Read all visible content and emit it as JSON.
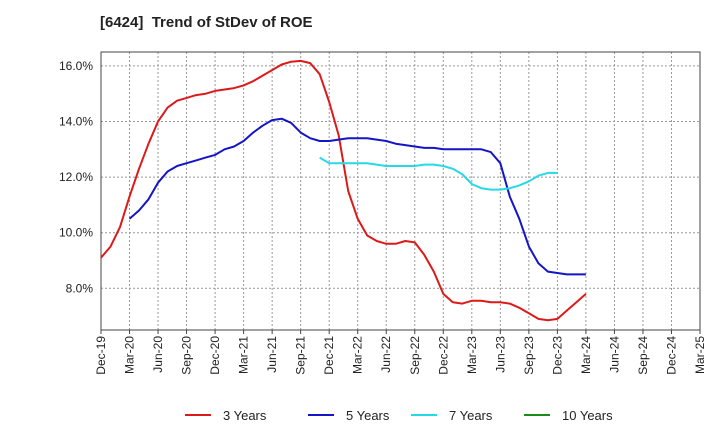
{
  "title": "[6424]  Trend of StDev of ROE",
  "chart_data": {
    "type": "line",
    "title": "[6424]  Trend of StDev of ROE",
    "xlabel": "",
    "ylabel": "",
    "x_ticks": [
      "Dec-19",
      "Mar-20",
      "Jun-20",
      "Sep-20",
      "Dec-20",
      "Mar-21",
      "Jun-21",
      "Sep-21",
      "Dec-21",
      "Mar-22",
      "Jun-22",
      "Sep-22",
      "Dec-22",
      "Mar-23",
      "Jun-23",
      "Sep-23",
      "Dec-23",
      "Mar-24",
      "Jun-24",
      "Sep-24",
      "Dec-24",
      "Mar-25"
    ],
    "y_ticks": [
      "8.0%",
      "10.0%",
      "12.0%",
      "14.0%",
      "16.0%"
    ],
    "y_tick_values": [
      8,
      10,
      12,
      14,
      16
    ],
    "ylim": [
      6.5,
      16.5
    ],
    "grid": true,
    "legend_position": "bottom",
    "series": [
      {
        "name": "3 Years",
        "color": "#dd1a1a",
        "start_index": 0,
        "values": [
          9.1,
          9.5,
          10.2,
          11.3,
          12.3,
          13.2,
          14.0,
          14.5,
          14.75,
          14.85,
          14.95,
          15.0,
          15.1,
          15.15,
          15.2,
          15.3,
          15.45,
          15.65,
          15.85,
          16.05,
          16.15,
          16.18,
          16.1,
          15.7,
          14.7,
          13.5,
          11.5,
          10.5,
          9.9,
          9.7,
          9.6,
          9.6,
          9.7,
          9.65,
          9.2,
          8.6,
          7.8,
          7.5,
          7.45,
          7.55,
          7.55,
          7.5,
          7.5,
          7.45,
          7.3,
          7.1,
          6.9,
          6.85,
          6.9,
          7.2,
          7.5,
          7.8
        ]
      },
      {
        "name": "5 Years",
        "color": "#1515c8",
        "start_index": 3,
        "values": [
          10.5,
          10.8,
          11.2,
          11.8,
          12.2,
          12.4,
          12.5,
          12.6,
          12.7,
          12.8,
          13.0,
          13.1,
          13.3,
          13.6,
          13.85,
          14.05,
          14.1,
          13.95,
          13.6,
          13.4,
          13.3,
          13.3,
          13.35,
          13.4,
          13.4,
          13.4,
          13.35,
          13.3,
          13.2,
          13.15,
          13.1,
          13.05,
          13.05,
          13.0,
          13.0,
          13.0,
          13.0,
          13.0,
          12.9,
          12.5,
          11.3,
          10.5,
          9.5,
          8.9,
          8.6,
          8.55,
          8.5,
          8.5,
          8.5
        ]
      },
      {
        "name": "7 Years",
        "color": "#26d9e6",
        "start_index": 23,
        "values": [
          12.7,
          12.5,
          12.5,
          12.5,
          12.5,
          12.5,
          12.45,
          12.4,
          12.4,
          12.4,
          12.4,
          12.45,
          12.45,
          12.4,
          12.3,
          12.1,
          11.75,
          11.6,
          11.55,
          11.55,
          11.6,
          11.7,
          11.85,
          12.05,
          12.15,
          12.15
        ]
      },
      {
        "name": "10 Years",
        "color": "#1a8a1a",
        "start_index": 0,
        "values": []
      }
    ]
  }
}
